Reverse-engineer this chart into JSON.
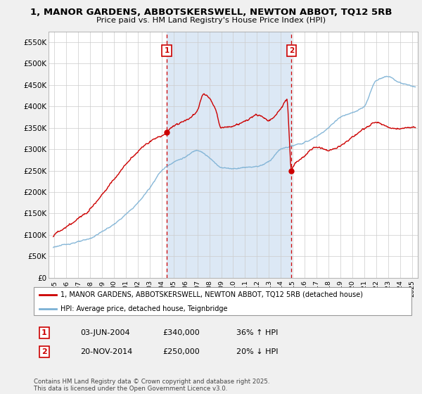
{
  "title1": "1, MANOR GARDENS, ABBOTSKERSWELL, NEWTON ABBOT, TQ12 5RB",
  "title2": "Price paid vs. HM Land Registry's House Price Index (HPI)",
  "legend_line1": "1, MANOR GARDENS, ABBOTSKERSWELL, NEWTON ABBOT, TQ12 5RB (detached house)",
  "legend_line2": "HPI: Average price, detached house, Teignbridge",
  "ann1_num": "1",
  "ann1_date": "03-JUN-2004",
  "ann1_price": "£340,000",
  "ann1_change": "36% ↑ HPI",
  "ann2_num": "2",
  "ann2_date": "20-NOV-2014",
  "ann2_price": "£250,000",
  "ann2_change": "20% ↓ HPI",
  "footnote": "Contains HM Land Registry data © Crown copyright and database right 2025.\nThis data is licensed under the Open Government Licence v3.0.",
  "vline1_x": 2004.42,
  "vline2_x": 2014.9,
  "ylim_min": 0,
  "ylim_max": 575000,
  "xlim_min": 1994.5,
  "xlim_max": 2025.5,
  "yticks": [
    0,
    50000,
    100000,
    150000,
    200000,
    250000,
    300000,
    350000,
    400000,
    450000,
    500000,
    550000
  ],
  "ytick_labels": [
    "£0",
    "£50K",
    "£100K",
    "£150K",
    "£200K",
    "£250K",
    "£300K",
    "£350K",
    "£400K",
    "£450K",
    "£500K",
    "£550K"
  ],
  "xticks": [
    1995,
    1996,
    1997,
    1998,
    1999,
    2000,
    2001,
    2002,
    2003,
    2004,
    2005,
    2006,
    2007,
    2008,
    2009,
    2010,
    2011,
    2012,
    2013,
    2014,
    2015,
    2016,
    2017,
    2018,
    2019,
    2020,
    2021,
    2022,
    2023,
    2024,
    2025
  ],
  "red_color": "#cc0000",
  "blue_color": "#7ab0d4",
  "shade_color": "#dce8f5",
  "vline_color": "#cc0000",
  "plot_bg": "#ffffff",
  "fig_bg": "#f0f0f0",
  "grid_color": "#cccccc",
  "sale1_x": 2004.42,
  "sale1_y": 340000,
  "sale2_x": 2014.9,
  "sale2_y": 250000
}
